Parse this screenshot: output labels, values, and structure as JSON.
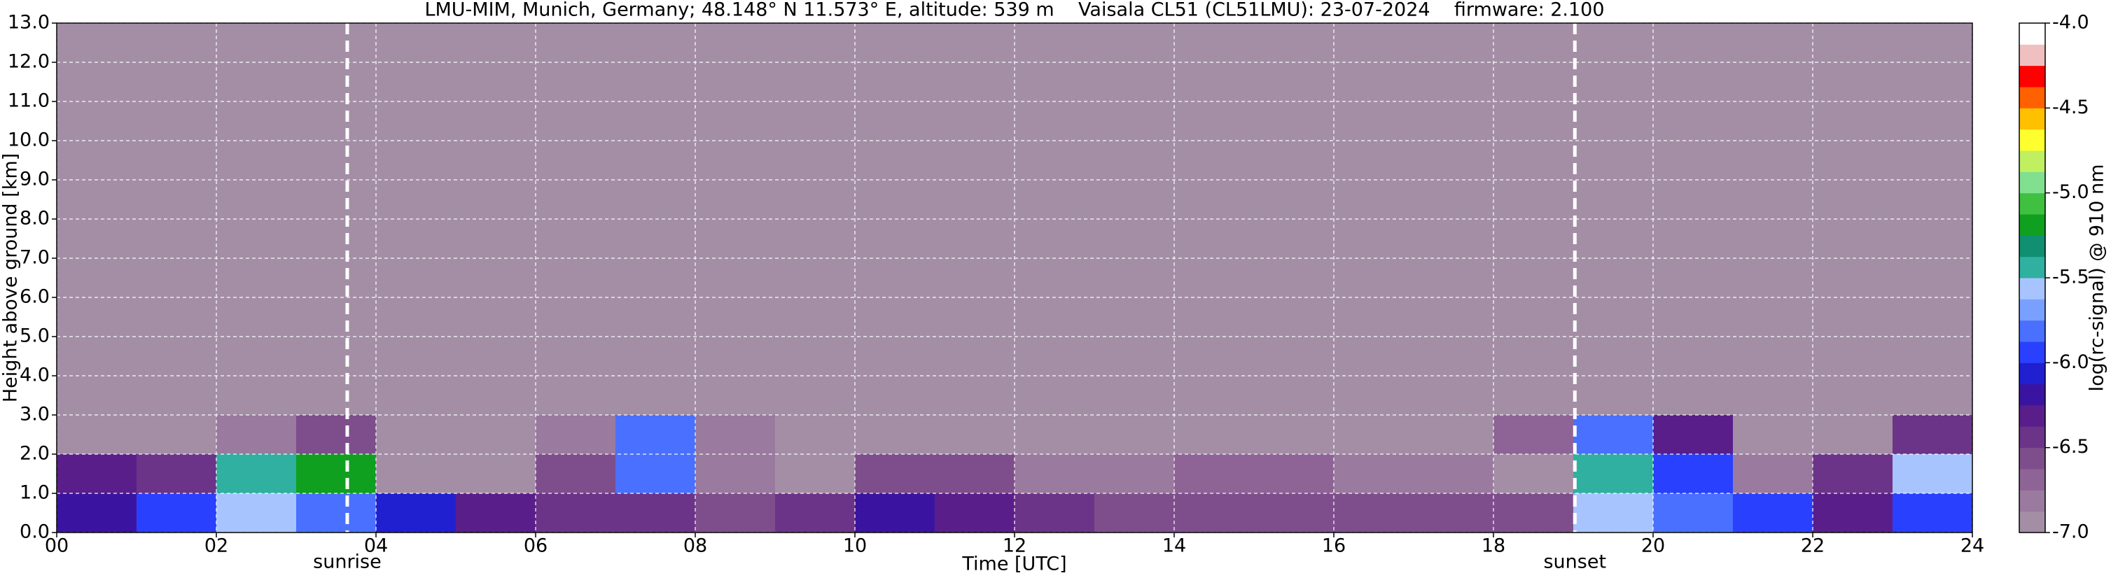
{
  "chart_data": {
    "type": "heatmap",
    "title": "LMU-MIM, Munich, Germany; 48.148° N 11.573° E, altitude: 539 m    Vaisala CL51 (CL51LMU): 23-07-2024    firmware: 2.100",
    "x_label": "Time [UTC]",
    "y_label": "Height above ground [km]",
    "colorbar_label": "log(rc-signal) @ 910 nm",
    "xlim": [
      0,
      24
    ],
    "ylim": [
      0,
      13
    ],
    "zlim": [
      -7,
      -4
    ],
    "grid": true,
    "xticks": [
      {
        "value": 0,
        "label": "00"
      },
      {
        "value": 2,
        "label": "02"
      },
      {
        "value": 4,
        "label": "04"
      },
      {
        "value": 6,
        "label": "06"
      },
      {
        "value": 8,
        "label": "08"
      },
      {
        "value": 10,
        "label": "10"
      },
      {
        "value": 12,
        "label": "12"
      },
      {
        "value": 14,
        "label": "14"
      },
      {
        "value": 16,
        "label": "16"
      },
      {
        "value": 18,
        "label": "18"
      },
      {
        "value": 20,
        "label": "20"
      },
      {
        "value": 22,
        "label": "22"
      },
      {
        "value": 24,
        "label": "24"
      }
    ],
    "yticks": [
      {
        "value": 0,
        "label": "0.0"
      },
      {
        "value": 1,
        "label": "1.0"
      },
      {
        "value": 2,
        "label": "2.0"
      },
      {
        "value": 3,
        "label": "3.0"
      },
      {
        "value": 4,
        "label": "4.0"
      },
      {
        "value": 5,
        "label": "5.0"
      },
      {
        "value": 6,
        "label": "6.0"
      },
      {
        "value": 7,
        "label": "7.0"
      },
      {
        "value": 8,
        "label": "8.0"
      },
      {
        "value": 9,
        "label": "9.0"
      },
      {
        "value": 10,
        "label": "10.0"
      },
      {
        "value": 11,
        "label": "11.0"
      },
      {
        "value": 12,
        "label": "12.0"
      },
      {
        "value": 13,
        "label": "13.0"
      }
    ],
    "zticks": [
      {
        "value": -4,
        "label": "-4.0"
      },
      {
        "value": -4.5,
        "label": "-4.5"
      },
      {
        "value": -5,
        "label": "-5.0"
      },
      {
        "value": -5.5,
        "label": "-5.5"
      },
      {
        "value": -6,
        "label": "-6.0"
      },
      {
        "value": -6.5,
        "label": "-6.5"
      },
      {
        "value": -7,
        "label": "-7.0"
      }
    ],
    "colorscale": [
      "#a48ea6",
      "#9a7a9e",
      "#8e6496",
      "#7e4e8c",
      "#6c3488",
      "#5a1e8a",
      "#3a14a0",
      "#2020d0",
      "#2a40ff",
      "#4a70ff",
      "#7aa0ff",
      "#a8c4ff",
      "#30b0a0",
      "#109070",
      "#10a020",
      "#40c040",
      "#80e090",
      "#c0f060",
      "#ffff30",
      "#ffc000",
      "#ff6000",
      "#ff0000",
      "#f0c0c0",
      "#ffffff"
    ],
    "xbins": [
      0,
      1,
      2,
      3,
      4,
      5,
      6,
      7,
      8,
      9,
      10,
      11,
      12,
      13,
      14,
      15,
      16,
      17,
      18,
      19,
      20,
      21,
      22,
      23,
      24
    ],
    "ybins": [
      0,
      1,
      2,
      3,
      13
    ],
    "z": [
      [
        -6.2,
        -6.0,
        -5.6,
        -5.8,
        -6.1,
        -6.3,
        -6.4,
        -6.5,
        -6.6,
        -6.4,
        -6.2,
        -6.3,
        -6.5,
        -6.6,
        -6.6,
        -6.6,
        -6.6,
        -6.6,
        -6.6,
        -5.6,
        -5.8,
        -6.0,
        -6.3,
        -6.0
      ],
      [
        -6.3,
        -6.4,
        -5.4,
        -5.2,
        -6.9,
        -6.9,
        -6.6,
        -5.8,
        -6.8,
        -6.9,
        -6.6,
        -6.6,
        -6.8,
        -6.8,
        -6.7,
        -6.7,
        -6.8,
        -6.8,
        -6.9,
        -5.4,
        -5.9,
        -6.8,
        -6.4,
        -5.6
      ],
      [
        -6.9,
        -6.9,
        -6.8,
        -6.6,
        -6.9,
        -6.9,
        -6.8,
        -5.8,
        -6.8,
        -6.9,
        -6.9,
        -6.9,
        -6.9,
        -6.9,
        -6.9,
        -6.9,
        -6.9,
        -6.9,
        -6.7,
        -5.8,
        -6.3,
        -6.9,
        -6.9,
        -6.5
      ],
      [
        -6.95,
        -6.95,
        -6.95,
        -6.95,
        -6.95,
        -6.95,
        -6.95,
        -6.95,
        -6.9,
        -6.9,
        -6.95,
        -6.95,
        -6.95,
        -6.95,
        -6.95,
        -6.95,
        -6.9,
        -6.9,
        -6.95,
        -6.95,
        -6.95,
        -6.95,
        -6.95,
        -6.95
      ]
    ],
    "annotations": [
      {
        "x": 3.64,
        "text": "sunrise"
      },
      {
        "x": 19.02,
        "text": "sunset"
      }
    ]
  }
}
